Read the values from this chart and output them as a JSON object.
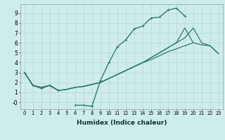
{
  "xlabel": "Humidex (Indice chaleur)",
  "x": [
    0,
    1,
    2,
    3,
    4,
    5,
    6,
    7,
    8,
    9,
    10,
    11,
    12,
    13,
    14,
    15,
    16,
    17,
    18,
    19,
    20,
    21,
    22,
    23
  ],
  "y_wavy": [
    3.0,
    1.7,
    1.4,
    1.7,
    1.2,
    null,
    -0.3,
    -0.3,
    -0.4,
    2.2,
    4.0,
    5.6,
    6.3,
    7.4,
    7.7,
    8.5,
    8.6,
    9.3,
    9.5,
    8.7,
    null,
    null,
    null,
    null
  ],
  "y_s1": [
    3.0,
    1.7,
    1.5,
    1.7,
    1.2,
    1.3,
    1.5,
    1.6,
    1.8,
    2.0,
    2.4,
    2.8,
    3.2,
    3.6,
    4.0,
    4.3,
    4.7,
    5.1,
    5.4,
    5.7,
    6.0,
    5.8,
    5.7,
    4.9
  ],
  "y_s2": [
    3.0,
    1.7,
    1.5,
    1.7,
    1.2,
    1.3,
    1.5,
    1.6,
    1.8,
    2.0,
    2.4,
    2.8,
    3.2,
    3.6,
    4.0,
    4.5,
    5.0,
    5.5,
    6.0,
    7.5,
    6.0,
    null,
    null,
    null
  ],
  "y_s3": [
    3.0,
    1.7,
    1.5,
    1.7,
    1.2,
    1.3,
    1.5,
    1.6,
    1.8,
    2.0,
    2.4,
    2.8,
    3.2,
    3.6,
    4.0,
    4.5,
    5.0,
    5.5,
    6.0,
    6.5,
    7.5,
    6.0,
    5.7,
    4.9
  ],
  "bg_color": "#ceecea",
  "line_color": "#2d7d6e",
  "grid_color": "#b8d8d4",
  "ylim": [
    -0.7,
    9.9
  ],
  "xlim": [
    -0.5,
    23.5
  ]
}
